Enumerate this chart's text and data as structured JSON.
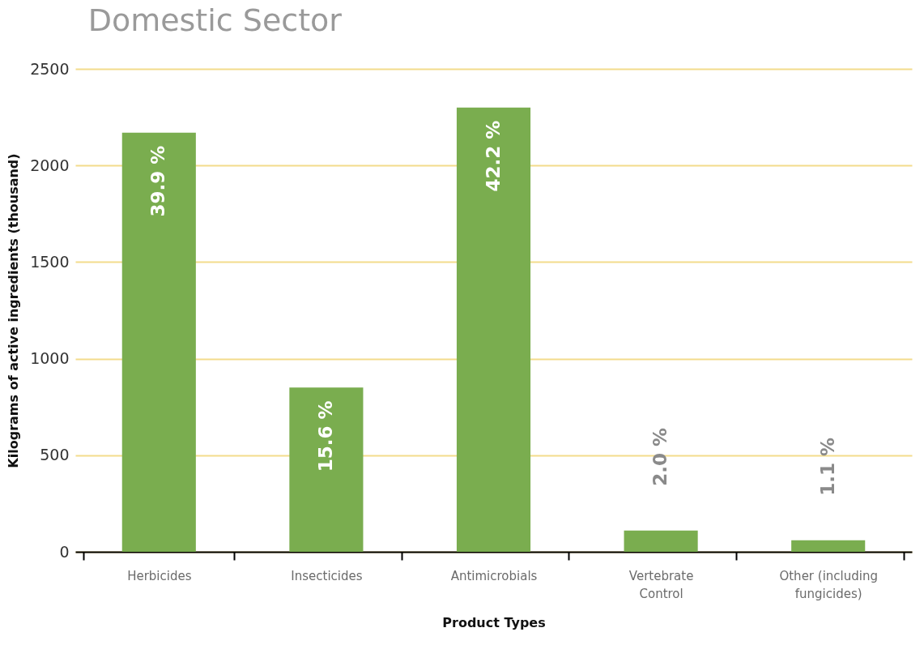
{
  "chart_data": {
    "type": "bar",
    "title": "Domestic Sector",
    "xlabel": "Product Types",
    "ylabel": "Kilograms of active ingredients (thousand)",
    "categories": [
      "Herbicides",
      "Insecticides",
      "Antimicrobials",
      "Vertebrate Control",
      "Other (including fungicides)"
    ],
    "values": [
      2170,
      850,
      2300,
      110,
      60
    ],
    "annotations": [
      {
        "text": "39.9 %",
        "x": "Herbicides",
        "y": 2170
      },
      {
        "text": "15.6 %",
        "x": "Insecticides",
        "y": 850
      },
      {
        "text": "42.2 %",
        "x": "Antimicrobials",
        "y": 2300
      },
      {
        "text": "2.0 %",
        "x": "Vertebrate Control",
        "y": 110
      },
      {
        "text": "1.1 %",
        "x": "Other (including fungicides)",
        "y": 60
      }
    ],
    "color": "#7aad4f",
    "ylim": [
      0,
      2500
    ],
    "yticks": [
      0,
      500,
      1000,
      1500,
      2000,
      2500
    ],
    "grid": "y"
  }
}
